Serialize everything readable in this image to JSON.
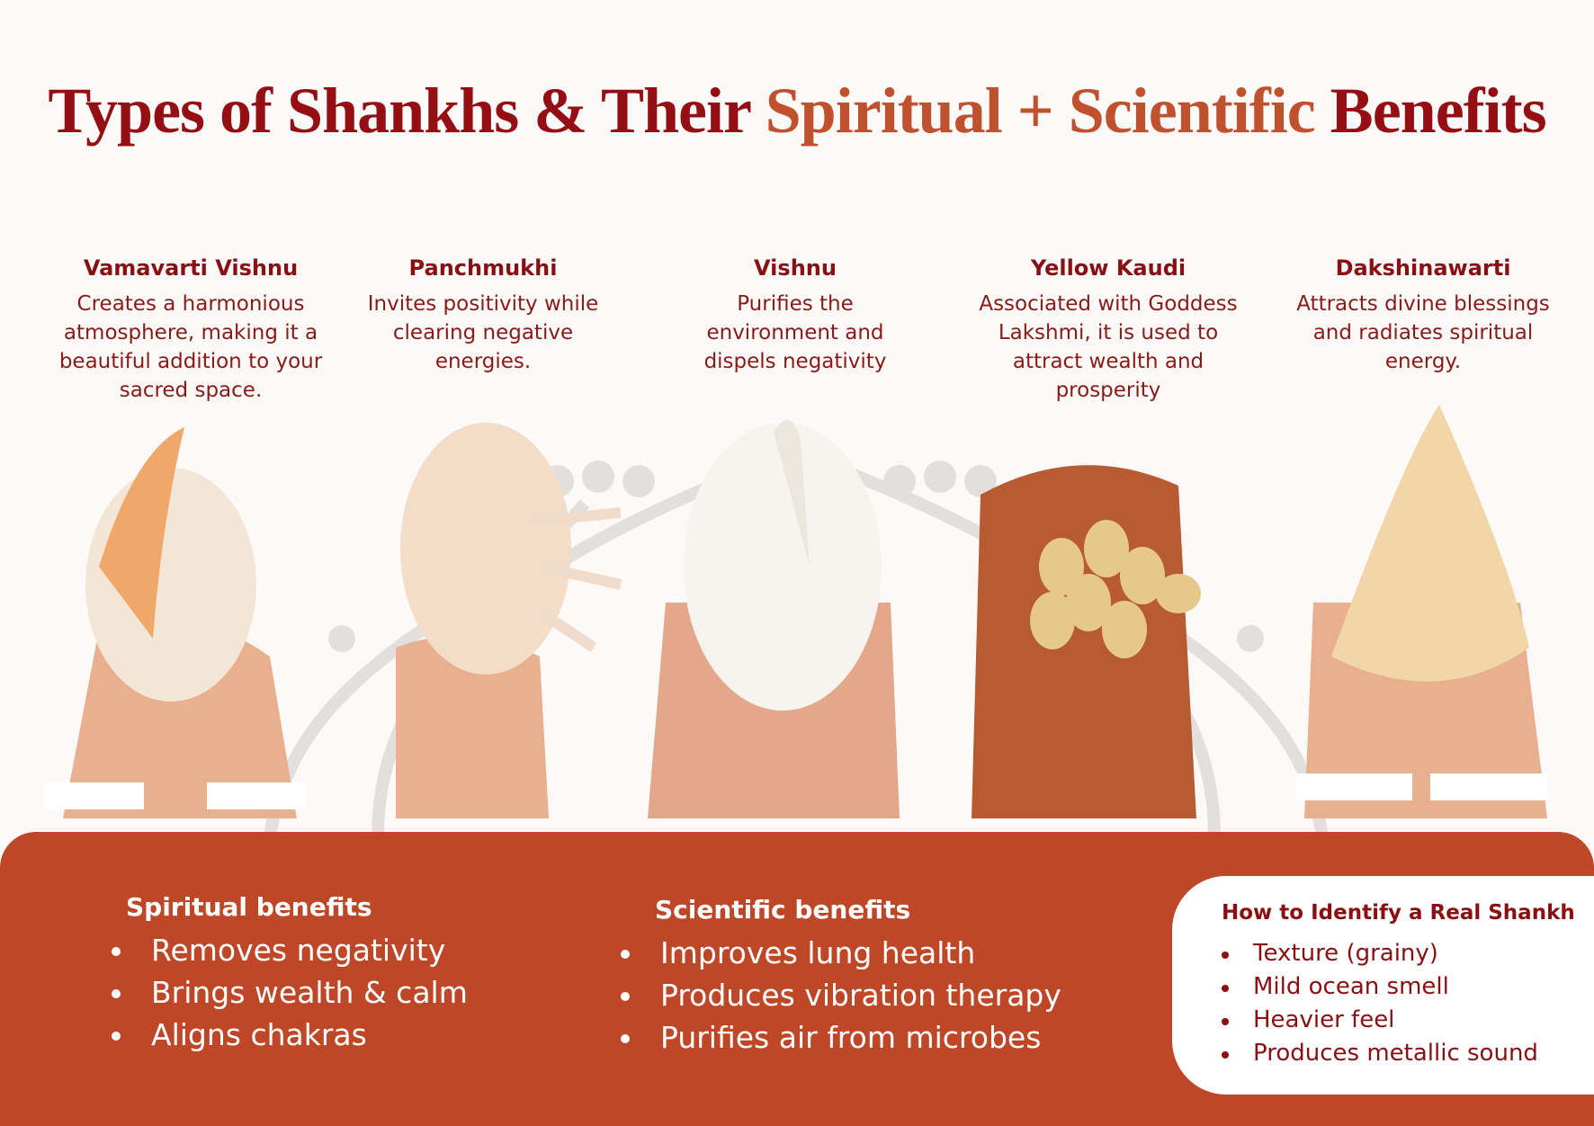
{
  "title": {
    "part1": "Types of Shankhs & Their ",
    "part2": "Spiritual + Scientific",
    "part3": " Benefits"
  },
  "colors": {
    "dark_red": "#950e13",
    "accent": "#c0512f",
    "panel": "#bd4727"
  },
  "shankhs": [
    {
      "name": "Vamavarti Vishnu",
      "description": "Creates a harmonious atmosphere, making it a beautiful addition to your sacred space."
    },
    {
      "name": "Panchmukhi",
      "description": "Invites positivity while clearing negative energies."
    },
    {
      "name": "Vishnu",
      "description": "Purifies the environment and dispels negativity"
    },
    {
      "name": "Yellow Kaudi",
      "description": "Associated with Goddess Lakshmi, it is used to attract wealth and prosperity"
    },
    {
      "name": "Dakshinawarti",
      "description": "Attracts divine blessings and radiates spiritual energy."
    }
  ],
  "spiritual": {
    "heading": "Spiritual benefits",
    "items": [
      "Removes negativity",
      "Brings wealth & calm",
      "Aligns chakras"
    ]
  },
  "scientific": {
    "heading": "Scientific benefits",
    "items": [
      "Improves lung health",
      "Produces vibration therapy",
      "Purifies air from microbes"
    ]
  },
  "identify": {
    "heading": "How to Identify a Real Shankh",
    "items": [
      "Texture (grainy)",
      "Mild ocean smell",
      "Heavier feel",
      "Produces metallic sound"
    ]
  }
}
